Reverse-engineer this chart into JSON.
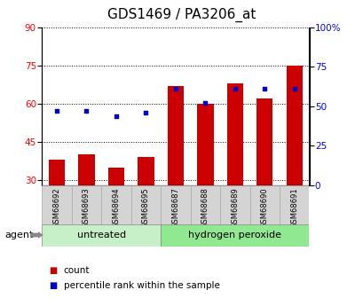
{
  "title": "GDS1469 / PA3206_at",
  "samples": [
    "GSM68692",
    "GSM68693",
    "GSM68694",
    "GSM68695",
    "GSM68687",
    "GSM68688",
    "GSM68689",
    "GSM68690",
    "GSM68691"
  ],
  "count_values": [
    38,
    40,
    35,
    39,
    67,
    60,
    68,
    62,
    75
  ],
  "percentile_values": [
    47,
    47,
    44,
    46,
    61,
    52,
    61,
    61,
    61
  ],
  "groups": [
    {
      "label": "untreated",
      "indices": [
        0,
        1,
        2,
        3
      ],
      "color": "#c8f0c8"
    },
    {
      "label": "hydrogen peroxide",
      "indices": [
        4,
        5,
        6,
        7,
        8
      ],
      "color": "#90e890"
    }
  ],
  "ylim_left": [
    28,
    90
  ],
  "ylim_right": [
    0,
    100
  ],
  "yticks_left": [
    30,
    45,
    60,
    75,
    90
  ],
  "yticks_right": [
    0,
    25,
    50,
    75,
    100
  ],
  "bar_color": "#cc0000",
  "dot_color": "#0000cc",
  "agent_label": "agent",
  "legend_count": "count",
  "legend_pct": "percentile rank within the sample",
  "title_fontsize": 11,
  "tick_fontsize": 7.5,
  "sample_fontsize": 6,
  "group_fontsize": 8
}
